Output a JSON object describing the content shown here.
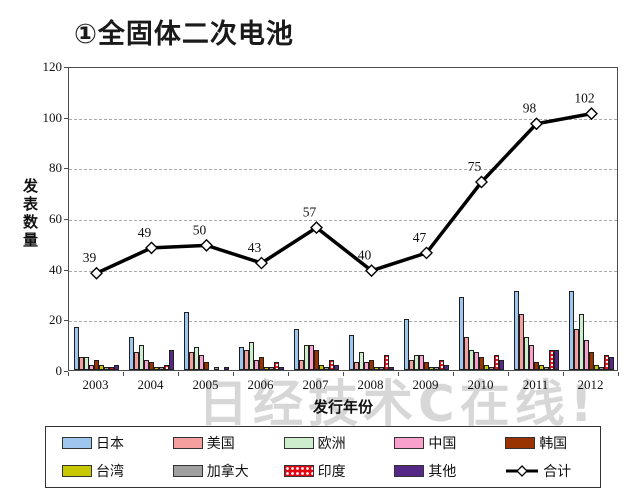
{
  "title": "①全固体二次电池",
  "watermark": "日经技术C在线!",
  "chart_data": {
    "type": "bar",
    "title": "①全固体二次电池",
    "categories": [
      "2003",
      "2004",
      "2005",
      "2006",
      "2007",
      "2008",
      "2009",
      "2010",
      "2011",
      "2012"
    ],
    "series": [
      {
        "name": "日本",
        "type": "bar",
        "color": "#9fc6ef",
        "values": [
          17,
          13,
          23,
          9,
          16,
          14,
          20,
          29,
          31,
          31
        ]
      },
      {
        "name": "美国",
        "type": "bar",
        "color": "#f59f9f",
        "values": [
          5,
          7,
          7,
          8,
          4,
          3,
          4,
          13,
          22,
          16
        ]
      },
      {
        "name": "欧洲",
        "type": "bar",
        "color": "#cdeecd",
        "values": [
          5,
          10,
          9,
          11,
          10,
          7,
          6,
          8,
          13,
          22
        ]
      },
      {
        "name": "中国",
        "type": "bar",
        "color": "#f9a0cd",
        "values": [
          2,
          4,
          6,
          4,
          10,
          3,
          6,
          7,
          10,
          12
        ]
      },
      {
        "name": "韩国",
        "type": "bar",
        "color": "#993300",
        "values": [
          4,
          3,
          3,
          5,
          8,
          4,
          3,
          5,
          3,
          7
        ]
      },
      {
        "name": "台湾",
        "type": "bar",
        "color": "#c8c800",
        "values": [
          2,
          1,
          0,
          1,
          2,
          1,
          1,
          2,
          2,
          2
        ]
      },
      {
        "name": "加拿大",
        "type": "bar",
        "color": "#a0a0a0",
        "values": [
          1,
          1,
          1,
          1,
          1,
          1,
          1,
          1,
          1,
          1
        ]
      },
      {
        "name": "印度",
        "type": "bar",
        "color": "#e30613",
        "pattern": "white-dots",
        "values": [
          1,
          2,
          0,
          3,
          4,
          6,
          4,
          6,
          8,
          6
        ]
      },
      {
        "name": "其他",
        "type": "bar",
        "color": "#552888",
        "values": [
          2,
          8,
          1,
          1,
          2,
          1,
          2,
          4,
          8,
          5
        ]
      },
      {
        "name": "合计",
        "type": "line",
        "color": "#000000",
        "marker": "diamond",
        "values": [
          39,
          49,
          50,
          43,
          57,
          40,
          47,
          75,
          98,
          102
        ]
      }
    ],
    "xlabel": "发行年份",
    "ylabel": "发表数量",
    "ylim": [
      0,
      120
    ],
    "yticks": [
      0,
      20,
      40,
      60,
      80,
      100,
      120
    ],
    "grid": "horizontal-dashed",
    "legend_position": "bottom"
  }
}
